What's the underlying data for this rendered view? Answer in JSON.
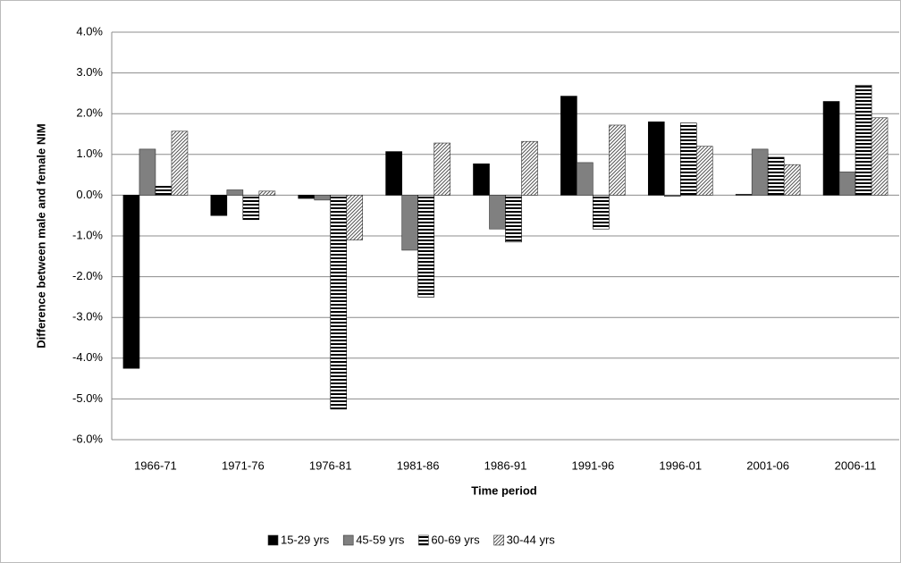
{
  "chart_data": {
    "type": "bar",
    "x_label": "Time period",
    "y_label": "Difference between male and female NIM",
    "categories": [
      "1966-71",
      "1971-76",
      "1976-81",
      "1981-86",
      "1986-91",
      "1991-96",
      "1996-01",
      "2001-06",
      "2006-11"
    ],
    "series": [
      {
        "name": "15-29 yrs",
        "color": "#000000",
        "pattern": "solid",
        "values": [
          -4.25,
          -0.5,
          -0.08,
          1.07,
          0.77,
          2.43,
          1.8,
          0.02,
          2.3
        ]
      },
      {
        "name": "45-59 yrs",
        "color": "#808080",
        "pattern": "solid",
        "values": [
          1.13,
          0.13,
          -0.12,
          -1.35,
          -0.83,
          0.8,
          -0.03,
          1.13,
          0.57
        ]
      },
      {
        "name": "60-69 yrs",
        "color": "#000000",
        "pattern": "horizontal-stripes",
        "values": [
          0.22,
          -0.6,
          -5.25,
          -2.5,
          -1.15,
          -0.83,
          1.77,
          0.93,
          2.7
        ]
      },
      {
        "name": "30-44 yrs",
        "color": "#555555",
        "pattern": "diagonal-hatch",
        "values": [
          1.57,
          0.1,
          -1.1,
          1.28,
          1.32,
          1.72,
          1.2,
          0.75,
          1.9
        ]
      }
    ],
    "ylim": [
      -6,
      4
    ],
    "yticks": [
      {
        "value": -6,
        "label": "-6.0%"
      },
      {
        "value": -5,
        "label": "-5.0%"
      },
      {
        "value": -4,
        "label": "-4.0%"
      },
      {
        "value": -3,
        "label": "-3.0%"
      },
      {
        "value": -2,
        "label": "-2.0%"
      },
      {
        "value": -1,
        "label": "-1.0%"
      },
      {
        "value": 0,
        "label": "0.0%"
      },
      {
        "value": 1,
        "label": "1.0%"
      },
      {
        "value": 2,
        "label": "2.0%"
      },
      {
        "value": 3,
        "label": "3.0%"
      },
      {
        "value": 4,
        "label": "4.0%"
      }
    ],
    "grid": true,
    "legend": "bottom"
  }
}
